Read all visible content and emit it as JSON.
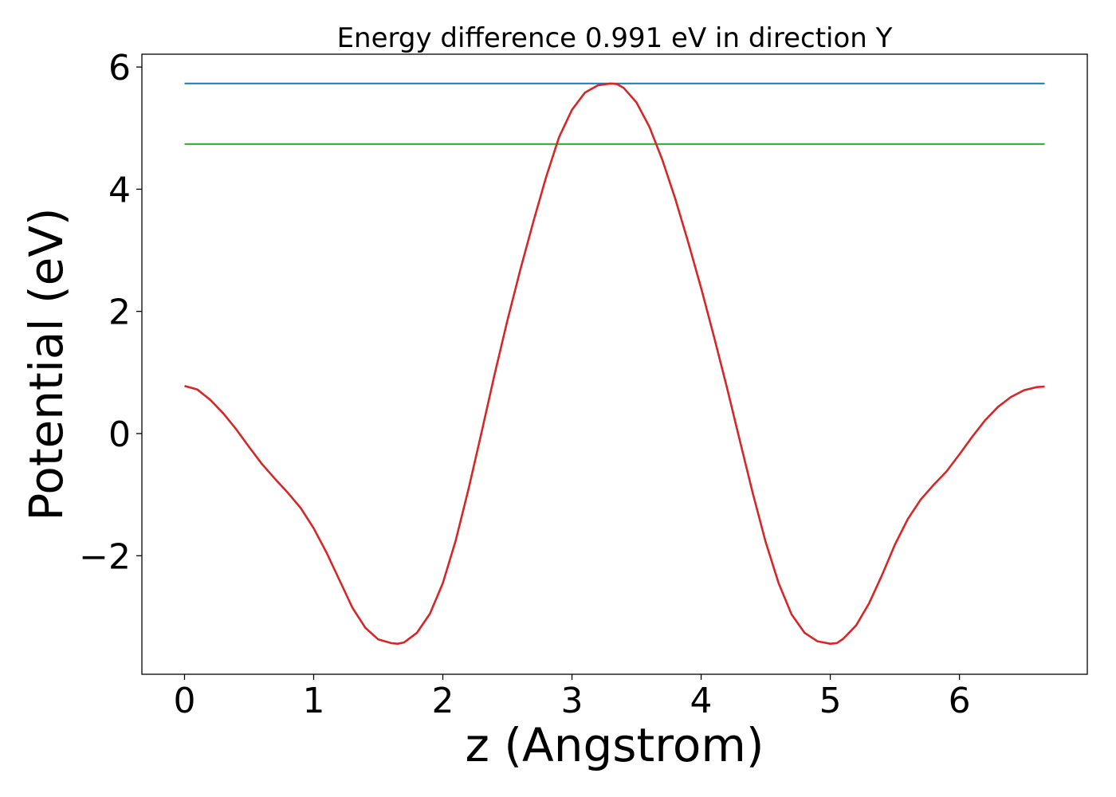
{
  "chart_data": {
    "type": "line",
    "title": "Energy difference 0.991 eV in direction Y",
    "xlabel": "z (Angstrom)",
    "ylabel": "Potential (eV)",
    "xlim": [
      -0.33,
      6.99
    ],
    "ylim": [
      -3.94,
      6.21
    ],
    "x_ticks": [
      0,
      1,
      2,
      3,
      4,
      5,
      6
    ],
    "x_tick_labels": [
      "0",
      "1",
      "2",
      "3",
      "4",
      "5",
      "6"
    ],
    "y_ticks": [
      -2,
      0,
      2,
      4,
      6
    ],
    "y_tick_labels": [
      "−2",
      "0",
      "2",
      "4",
      "6"
    ],
    "grid": false,
    "series": [
      {
        "color": "#1f77b4",
        "x": [
          0,
          6.66
        ],
        "y": [
          5.73,
          5.73
        ]
      },
      {
        "color": "#2ca02c",
        "x": [
          0,
          6.66
        ],
        "y": [
          4.74,
          4.74
        ]
      },
      {
        "color": "#d62728",
        "x": [
          0,
          0.1,
          0.2,
          0.3,
          0.4,
          0.5,
          0.6,
          0.7,
          0.8,
          0.9,
          1.0,
          1.1,
          1.2,
          1.3,
          1.4,
          1.5,
          1.6,
          1.65,
          1.7,
          1.8,
          1.9,
          2.0,
          2.1,
          2.2,
          2.3,
          2.4,
          2.5,
          2.6,
          2.7,
          2.8,
          2.9,
          3.0,
          3.1,
          3.2,
          3.3,
          3.35,
          3.4,
          3.5,
          3.6,
          3.7,
          3.8,
          3.9,
          4.0,
          4.1,
          4.2,
          4.3,
          4.4,
          4.5,
          4.6,
          4.7,
          4.8,
          4.9,
          5.0,
          5.05,
          5.1,
          5.2,
          5.3,
          5.4,
          5.5,
          5.6,
          5.7,
          5.8,
          5.9,
          6.0,
          6.1,
          6.2,
          6.3,
          6.4,
          6.5,
          6.6,
          6.66
        ],
        "y": [
          0.78,
          0.72,
          0.55,
          0.33,
          0.07,
          -0.22,
          -0.5,
          -0.74,
          -0.97,
          -1.22,
          -1.55,
          -1.95,
          -2.4,
          -2.85,
          -3.18,
          -3.37,
          -3.43,
          -3.44,
          -3.42,
          -3.26,
          -2.95,
          -2.45,
          -1.75,
          -0.9,
          0.02,
          0.96,
          1.85,
          2.68,
          3.46,
          4.2,
          4.85,
          5.3,
          5.58,
          5.7,
          5.73,
          5.72,
          5.66,
          5.42,
          5.02,
          4.48,
          3.84,
          3.13,
          2.38,
          1.58,
          0.75,
          -0.12,
          -0.98,
          -1.78,
          -2.45,
          -2.96,
          -3.26,
          -3.4,
          -3.44,
          -3.43,
          -3.36,
          -3.14,
          -2.78,
          -2.32,
          -1.82,
          -1.4,
          -1.08,
          -0.84,
          -0.62,
          -0.34,
          -0.05,
          0.22,
          0.44,
          0.6,
          0.71,
          0.76,
          0.77
        ]
      }
    ]
  }
}
